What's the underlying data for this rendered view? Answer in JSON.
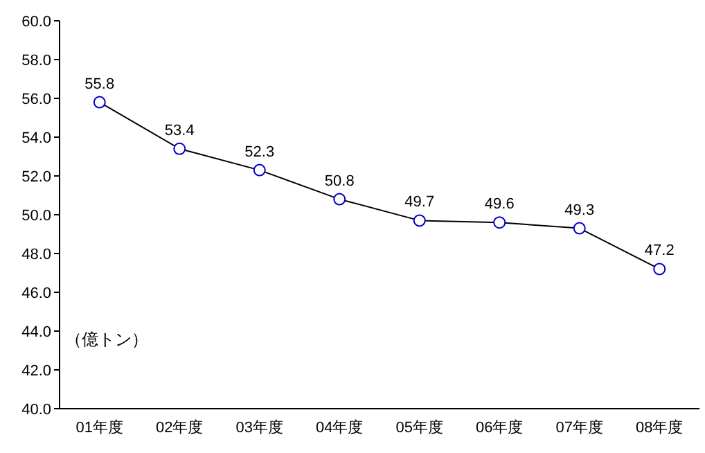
{
  "chart_data": {
    "type": "line",
    "categories": [
      "01年度",
      "02年度",
      "03年度",
      "04年度",
      "05年度",
      "06年度",
      "07年度",
      "08年度"
    ],
    "series": [
      {
        "color": "#000000",
        "values": [
          55.8,
          53.4,
          52.3,
          50.8,
          49.7,
          49.6,
          49.3,
          47.2
        ]
      }
    ],
    "marker": "circle",
    "line_style": "solid",
    "data_labels": true,
    "grid": false,
    "ylim": [
      40,
      60
    ],
    "yticks": [
      {
        "value": 40,
        "label": "40.0"
      },
      {
        "value": 42,
        "label": "42.0"
      },
      {
        "value": 44,
        "label": "44.0"
      },
      {
        "value": 46,
        "label": "46.0"
      },
      {
        "value": 48,
        "label": "48.0"
      },
      {
        "value": 50,
        "label": "50.0"
      },
      {
        "value": 52,
        "label": "52.0"
      },
      {
        "value": 54,
        "label": "54.0"
      },
      {
        "value": 56,
        "label": "56.0"
      },
      {
        "value": 58,
        "label": "58.0"
      },
      {
        "value": 60,
        "label": "60.0"
      }
    ],
    "annotations": [
      "（億トン）"
    ]
  }
}
